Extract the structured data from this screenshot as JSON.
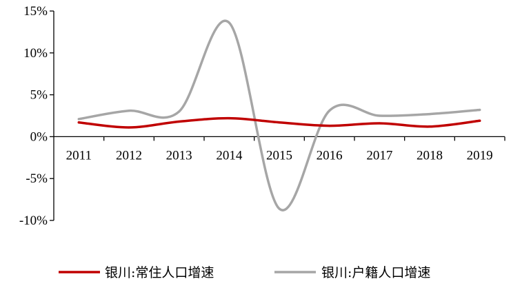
{
  "chart_data": {
    "type": "line",
    "categories": [
      "2011",
      "2012",
      "2013",
      "2014",
      "2015",
      "2016",
      "2017",
      "2018",
      "2019"
    ],
    "y_tick_labels": [
      "15%",
      "10%",
      "5%",
      "0%",
      "-5%",
      "-10%"
    ],
    "y_ticks": [
      15,
      10,
      5,
      0,
      -5,
      -10
    ],
    "ylim": [
      -10,
      15
    ],
    "smooth": true,
    "grid": false,
    "legend_position": "bottom",
    "series": [
      {
        "name": "银川:常住人口增速",
        "color": "#C00000",
        "values": [
          1.7,
          1.1,
          1.8,
          2.2,
          1.7,
          1.3,
          1.6,
          1.2,
          1.9
        ]
      },
      {
        "name": "银川:户籍人口增速",
        "color": "#A6A6A6",
        "values": [
          2.1,
          3.1,
          3.0,
          13.6,
          -8.6,
          3.1,
          2.5,
          2.7,
          3.2
        ]
      }
    ]
  }
}
